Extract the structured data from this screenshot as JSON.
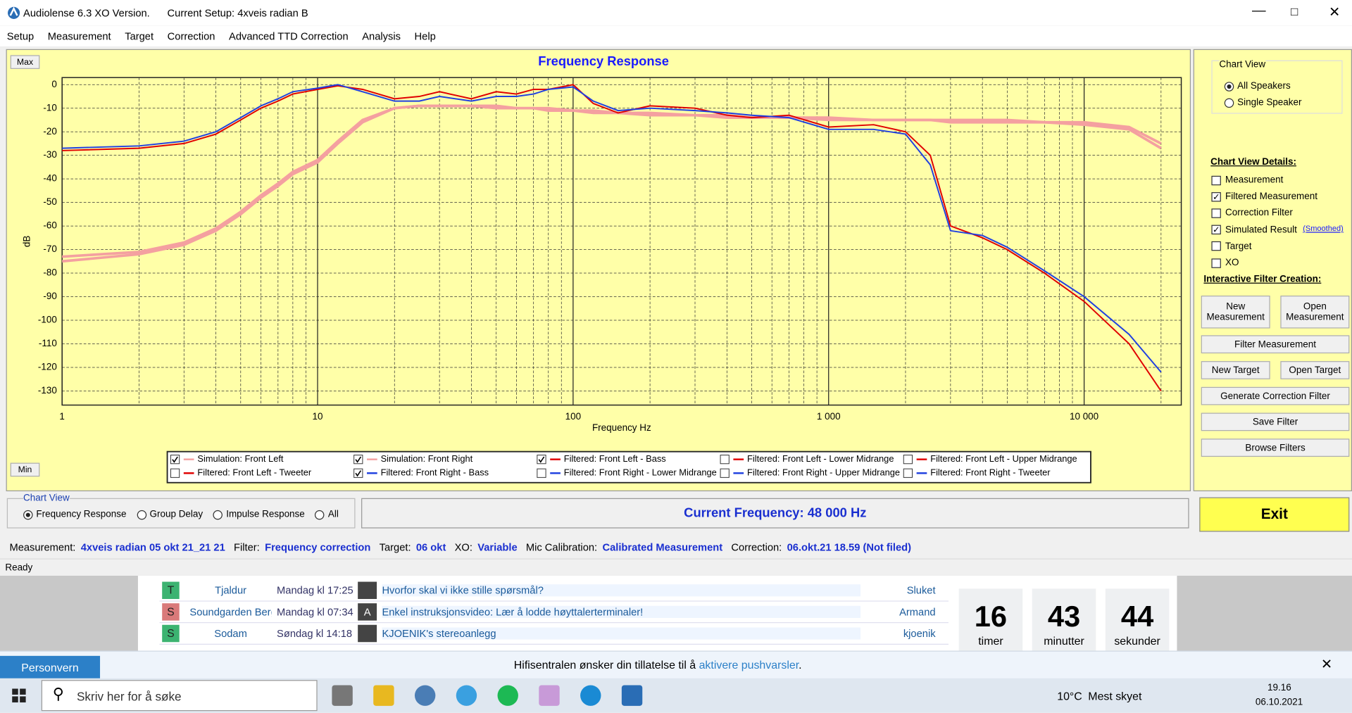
{
  "window": {
    "title": "Audiolense 6.3 XO Version.",
    "setup": "Current Setup: 4xveis radian B"
  },
  "menu": [
    "Setup",
    "Measurement",
    "Target",
    "Correction",
    "Advanced TTD Correction",
    "Analysis",
    "Help"
  ],
  "chart_buttons": {
    "max": "Max",
    "min": "Min"
  },
  "chart_data": {
    "type": "line",
    "title": "Frequency Response",
    "xlabel": "Frequency Hz",
    "ylabel": "dB",
    "xlog": true,
    "grid": true,
    "xlim": [
      1,
      24000
    ],
    "xticks": [
      1,
      10,
      100,
      {
        "value": 1000,
        "label": "1 000"
      },
      {
        "value": 10000,
        "label": "10 000"
      }
    ],
    "ylim": [
      -136,
      3
    ],
    "yticks": [
      0,
      -10,
      -20,
      -30,
      -40,
      -50,
      -60,
      -70,
      -80,
      -90,
      -100,
      -110,
      -120,
      -130
    ],
    "x": [
      1,
      2,
      3,
      4,
      5,
      6,
      7,
      8,
      10,
      12,
      15,
      20,
      25,
      30,
      40,
      50,
      60,
      70,
      80,
      100,
      120,
      150,
      200,
      300,
      400,
      500,
      700,
      1000,
      1500,
      2000,
      2500,
      3000,
      4000,
      5000,
      7000,
      10000,
      15000,
      20000
    ],
    "series": [
      {
        "name": "Simulation: Front Left",
        "color": "#f4a0a0",
        "checked": true,
        "values": [
          -75,
          -72,
          -68,
          -62,
          -55,
          -48,
          -43,
          -38,
          -33,
          -25,
          -16,
          -10,
          -9,
          -9,
          -9,
          -9,
          -10,
          -10,
          -10,
          -11,
          -11,
          -12,
          -12,
          -13,
          -13,
          -14,
          -14,
          -14,
          -15,
          -15,
          -15,
          -15,
          -15,
          -15,
          -16,
          -16,
          -18,
          -25
        ]
      },
      {
        "name": "Simulation: Front Right",
        "color": "#f4a0a0",
        "checked": true,
        "values": [
          -73,
          -71,
          -67,
          -61,
          -54,
          -47,
          -42,
          -37,
          -32,
          -24,
          -15,
          -10,
          -9,
          -9,
          -9,
          -10,
          -10,
          -10,
          -11,
          -11,
          -12,
          -12,
          -13,
          -13,
          -14,
          -14,
          -14,
          -15,
          -15,
          -15,
          -15,
          -16,
          -16,
          -16,
          -16,
          -17,
          -19,
          -27
        ]
      },
      {
        "name": "Filtered: Front Left - Bass",
        "color": "#e00000",
        "checked": true,
        "values": [
          -28,
          -27,
          -25,
          -21,
          -15,
          -10,
          -7,
          -4,
          -2,
          -0.5,
          -2,
          -6,
          -5,
          -3,
          -6,
          -3,
          -4,
          -2,
          -2,
          0,
          -8,
          -12,
          -9,
          -10,
          -13,
          -14,
          -13,
          -18,
          -17,
          -20,
          -30,
          -60,
          -65,
          -70,
          -80,
          -92,
          -110,
          -130
        ]
      },
      {
        "name": "Filtered: Front Left - Lower Midrange",
        "color": "#e00000",
        "checked": false
      },
      {
        "name": "Filtered: Front Left - Upper Midrange",
        "color": "#e00000",
        "checked": false
      },
      {
        "name": "Filtered: Front Left - Tweeter",
        "color": "#e00000",
        "checked": false
      },
      {
        "name": "Filtered: Front Right - Bass",
        "color": "#2040e0",
        "checked": true,
        "values": [
          -27,
          -26,
          -24,
          -20,
          -14,
          -9,
          -6,
          -3,
          -1.5,
          0,
          -3,
          -7,
          -7,
          -5,
          -7,
          -5,
          -5,
          -4,
          -2,
          -1,
          -7,
          -11,
          -10,
          -11,
          -12,
          -13,
          -14,
          -19,
          -19,
          -21,
          -34,
          -62,
          -64,
          -69,
          -79,
          -90,
          -106,
          -122
        ]
      },
      {
        "name": "Filtered: Front Right - Lower Midrange",
        "color": "#2040e0",
        "checked": false
      },
      {
        "name": "Filtered: Front Right - Upper Midrange",
        "color": "#2040e0",
        "checked": false
      },
      {
        "name": "Filtered: Front Right - Tweeter",
        "color": "#2040e0",
        "checked": false
      }
    ]
  },
  "side_panel": {
    "chart_view_title": "Chart View",
    "radios": [
      "All Speakers",
      "Single Speaker"
    ],
    "radio_selected": 0,
    "details_title": "Chart View Details:",
    "checks": [
      {
        "label": "Measurement",
        "checked": false
      },
      {
        "label": "Filtered Measurement",
        "checked": true
      },
      {
        "label": "Correction Filter",
        "checked": false
      },
      {
        "label": "Simulated Result",
        "checked": true
      },
      {
        "label": "Target",
        "checked": false
      },
      {
        "label": "XO",
        "checked": false
      }
    ],
    "smoothed": "(Smoothed)",
    "interactive_title": "Interactive Filter Creation:",
    "buttons": [
      "New Measurement",
      "Open Measurement",
      "Filter Measurement",
      "New Target",
      "Open Target",
      "Generate Correction Filter",
      "Save Filter",
      "Browse Filters"
    ]
  },
  "bottom": {
    "chart_view": "Chart View",
    "radios": [
      "Frequency Response",
      "Group Delay",
      "Impulse Response",
      "All"
    ],
    "radio_selected": 0,
    "current_frequency": "Current Frequency: 48 000 Hz",
    "exit": "Exit"
  },
  "info": [
    [
      "Measurement:",
      "4xveis radian 05 okt 21_21 21"
    ],
    [
      "Filter:",
      "Frequency correction"
    ],
    [
      "Target:",
      "06 okt"
    ],
    [
      "XO:",
      "Variable"
    ],
    [
      "Mic Calibration:",
      "Calibrated Measurement"
    ],
    [
      "Correction:",
      "06.okt.21 18.59 (Not filed)"
    ]
  ],
  "status": "Ready",
  "forum": [
    {
      "letter": "T",
      "user": "Tjaldur",
      "time": "Mandag kl 17:25",
      "icon": "",
      "topic": "Hvorfor skal vi ikke stille spørsmål?",
      "last": "Sluket"
    },
    {
      "letter": "S",
      "user": "Soundgarden Berg",
      "time": "Mandag kl 07:34",
      "icon": "A",
      "topic": "Enkel instruksjonsvideo: Lær å lodde høyttalerterminaler!",
      "last": "Armand"
    },
    {
      "letter": "S",
      "user": "Sodam",
      "time": "Søndag kl 14:18",
      "icon": "",
      "topic": "KJOENIK's stereoanlegg",
      "last": "kjoenik"
    }
  ],
  "countdown": [
    {
      "value": 16,
      "unit": "timer"
    },
    {
      "value": 43,
      "unit": "minutter"
    },
    {
      "value": 44,
      "unit": "sekunder"
    }
  ],
  "notification": {
    "button": "Personvern",
    "text": "Hifisentralen ønsker din tillatelse til å",
    "link": "aktivere pushvarsler",
    "end": "."
  },
  "taskbar": {
    "search": "Skriv her for å søke",
    "temp": "10°C",
    "weather": "Mest skyet",
    "time": "19.16",
    "date": "06.10.2021"
  }
}
